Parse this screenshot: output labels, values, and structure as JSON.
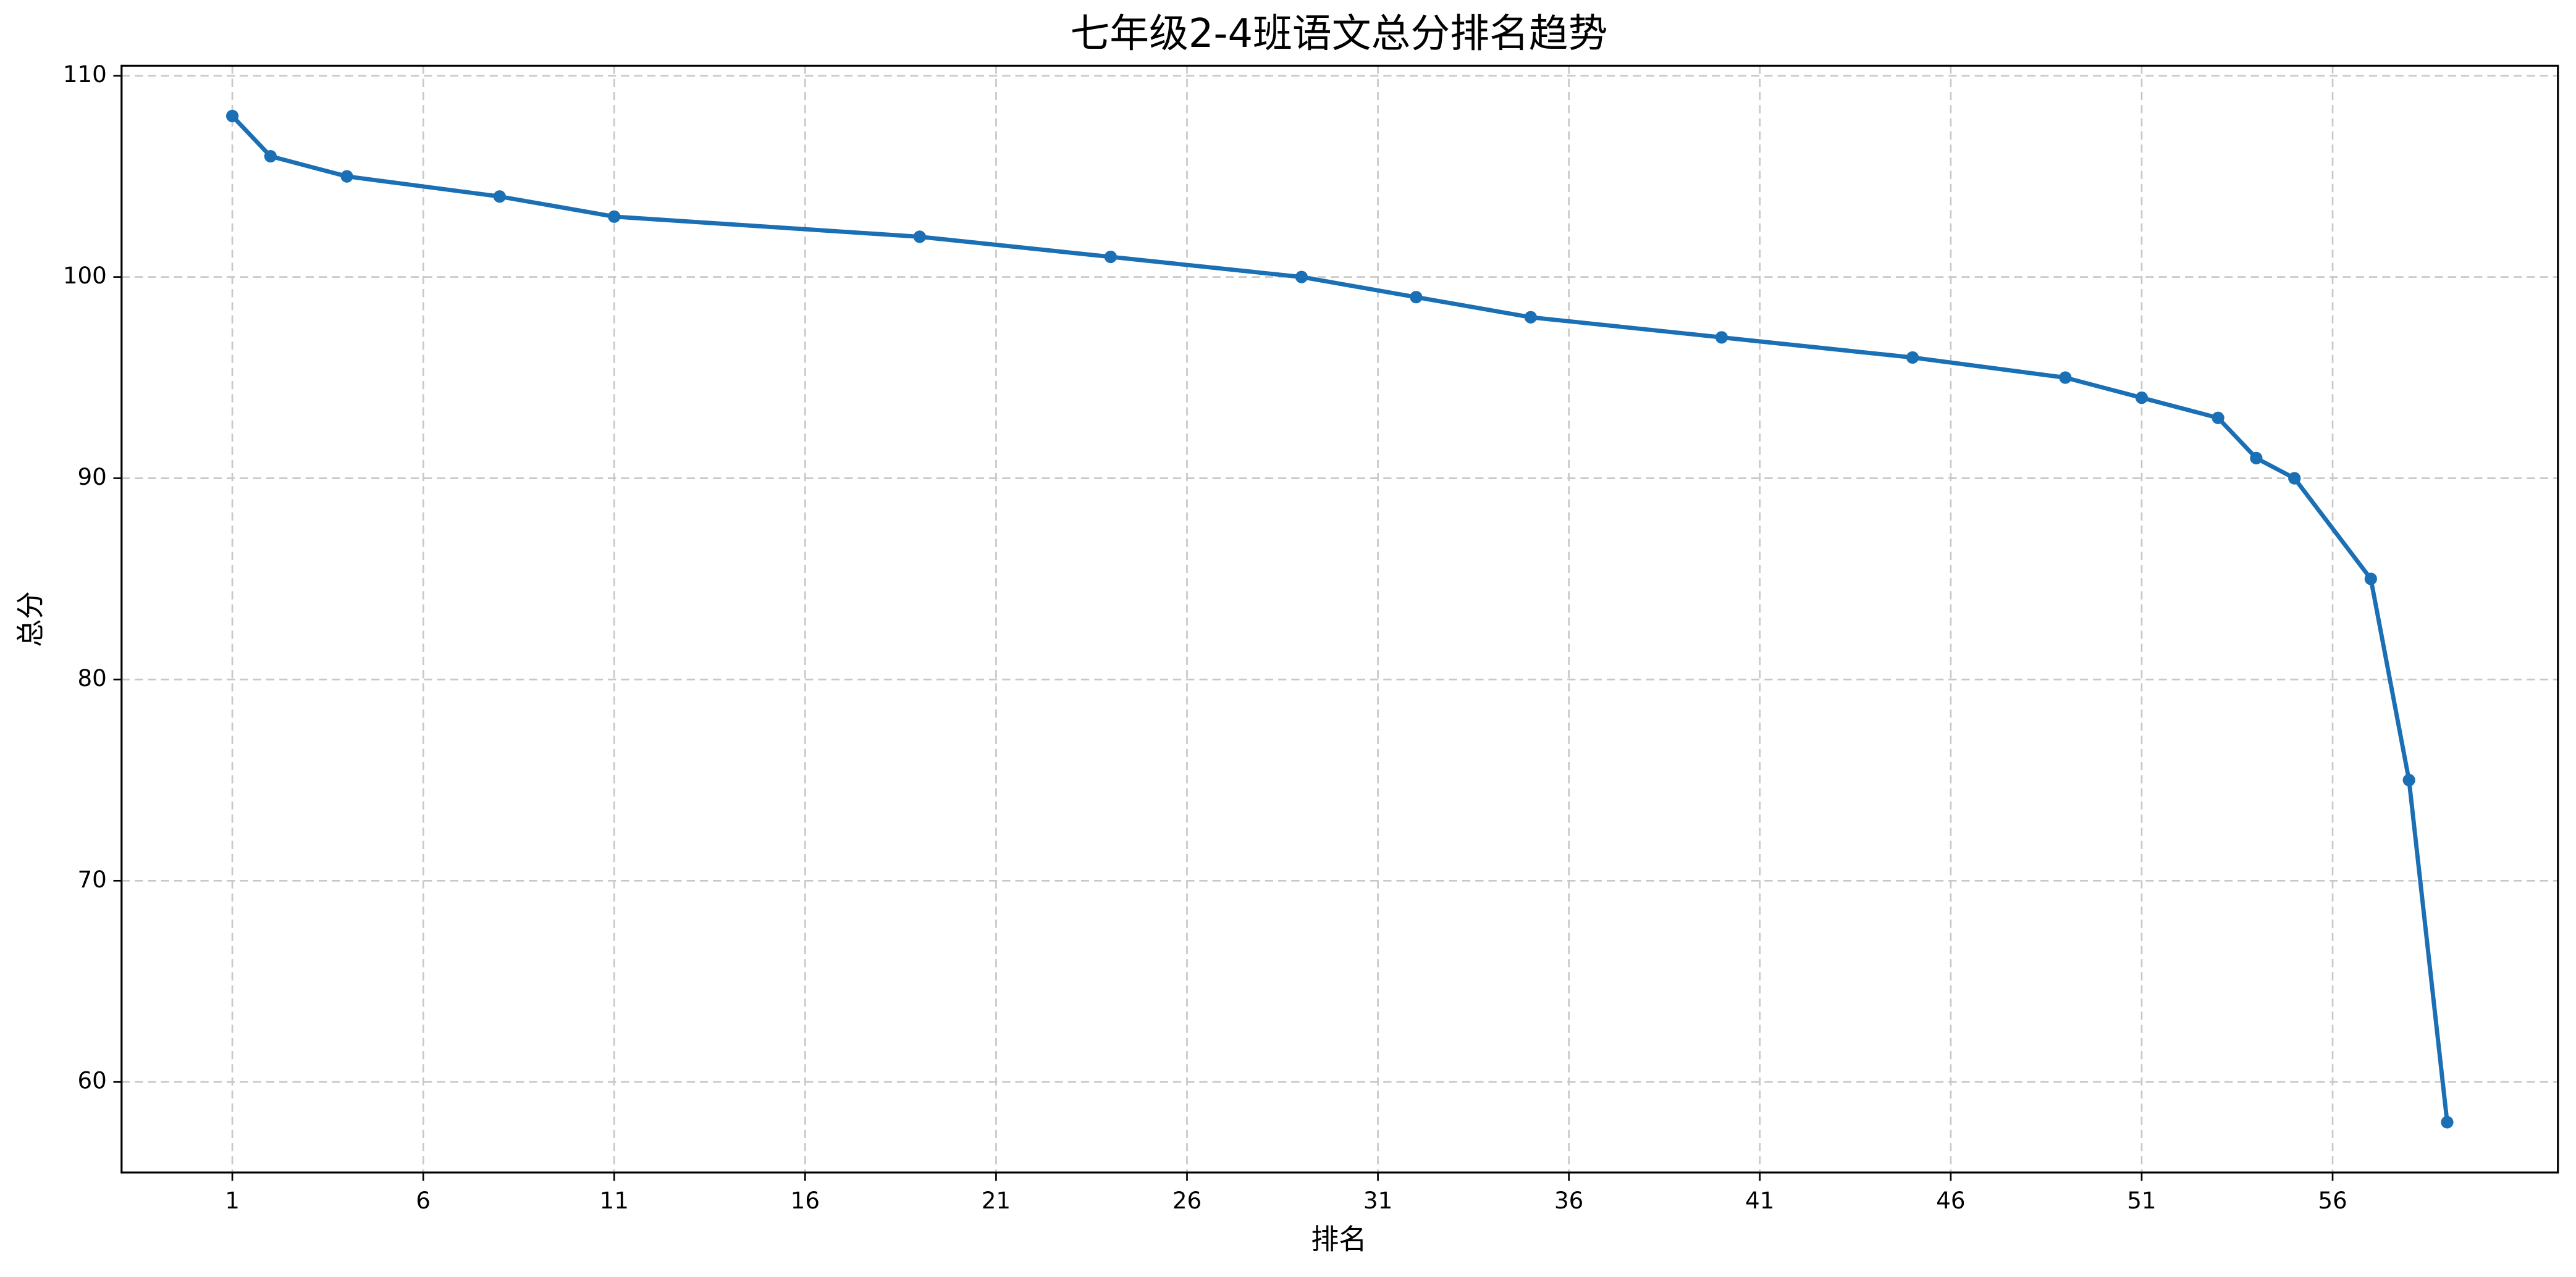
{
  "chart_data": {
    "type": "line",
    "title": "七年级2-4班语文总分排名趋势",
    "x_label": "排名",
    "y_label": "总分",
    "x": [
      1,
      2,
      4,
      8,
      11,
      19,
      24,
      29,
      32,
      35,
      40,
      45,
      49,
      51,
      53,
      54,
      55,
      57,
      58,
      59
    ],
    "series": [
      {
        "name": "总分",
        "color": "#1a6fb5",
        "values": [
          108,
          106,
          105,
          104,
          103,
          102,
          101,
          100,
          99,
          98,
          97,
          96,
          95,
          94,
          93,
          91,
          90,
          85,
          75,
          58
        ]
      }
    ],
    "xlim": [
      -1.9,
      61.9
    ],
    "xticks": [
      1,
      6,
      11,
      16,
      21,
      26,
      31,
      36,
      41,
      46,
      51,
      56
    ],
    "ylim": [
      55.5,
      110.5
    ],
    "yticks": [
      60,
      70,
      80,
      90,
      100,
      110
    ],
    "grid": true,
    "markers": true
  }
}
